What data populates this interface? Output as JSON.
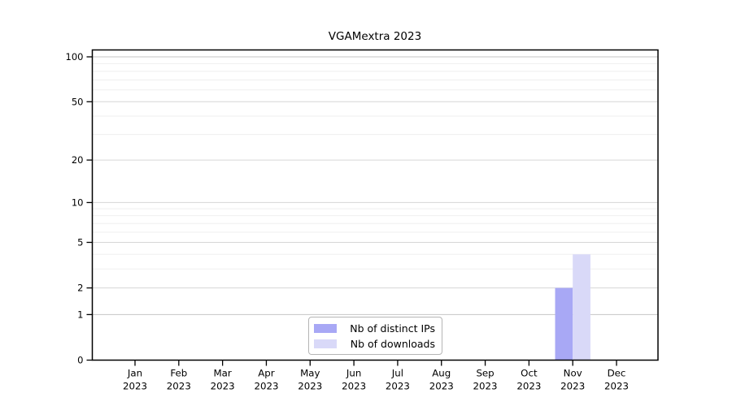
{
  "chart_data": {
    "type": "bar",
    "title": "VGAMextra 2023",
    "x_categories": [
      {
        "label": "Jan",
        "sublabel": "2023"
      },
      {
        "label": "Feb",
        "sublabel": "2023"
      },
      {
        "label": "Mar",
        "sublabel": "2023"
      },
      {
        "label": "Apr",
        "sublabel": "2023"
      },
      {
        "label": "May",
        "sublabel": "2023"
      },
      {
        "label": "Jun",
        "sublabel": "2023"
      },
      {
        "label": "Jul",
        "sublabel": "2023"
      },
      {
        "label": "Aug",
        "sublabel": "2023"
      },
      {
        "label": "Sep",
        "sublabel": "2023"
      },
      {
        "label": "Oct",
        "sublabel": "2023"
      },
      {
        "label": "Nov",
        "sublabel": "2023"
      },
      {
        "label": "Dec",
        "sublabel": "2023"
      }
    ],
    "series": [
      {
        "name": "Nb of distinct IPs",
        "color": "#a8a8f5",
        "values": [
          0,
          0,
          0,
          0,
          0,
          0,
          0,
          0,
          0,
          0,
          2,
          0
        ]
      },
      {
        "name": "Nb of downloads",
        "color": "#d9d9f8",
        "values": [
          0,
          0,
          0,
          0,
          0,
          0,
          0,
          0,
          0,
          0,
          4,
          0
        ]
      }
    ],
    "xlabel": "",
    "ylabel": "",
    "y_scale": "log1p",
    "y_ticks": [
      100,
      50,
      20,
      10,
      5,
      2,
      1,
      0
    ],
    "y_minor_grid": [
      90,
      80,
      70,
      60,
      40,
      30,
      9,
      8,
      7,
      6,
      4,
      3
    ],
    "ylim": [
      0,
      112
    ],
    "grid": true,
    "legend_position": "bottom-center-inside",
    "colors": {
      "axis": "#000000",
      "tick_label": "#000000",
      "grid_major": "#d6d6d6",
      "grid_minor": "#efefef",
      "top_grid": "#c4c4c4"
    }
  }
}
